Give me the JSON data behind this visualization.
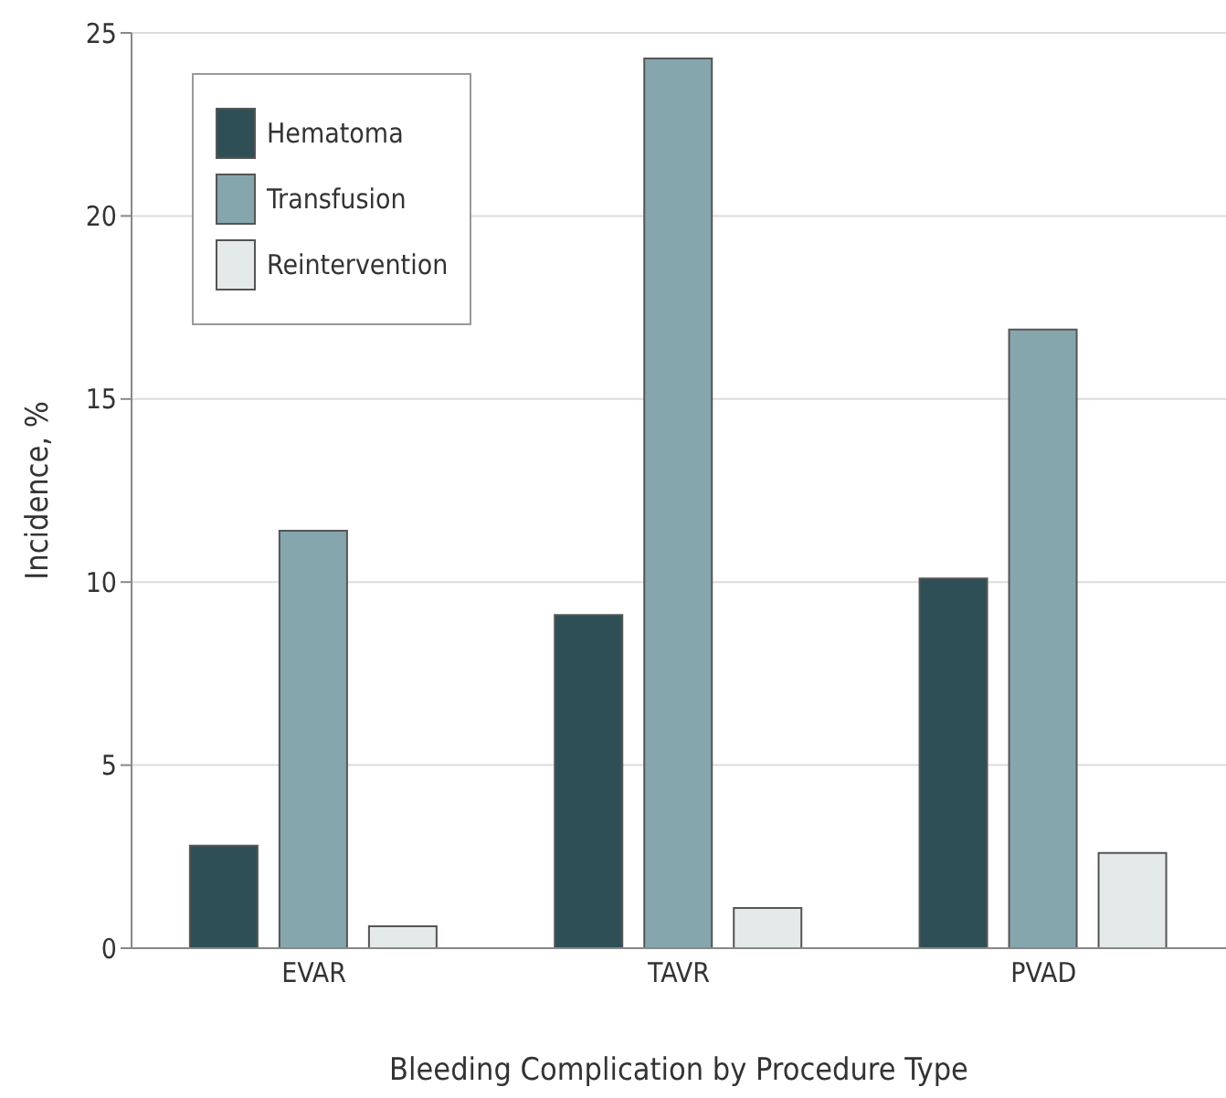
{
  "chart_data": {
    "type": "bar",
    "xlabel": "Bleeding Complication by Procedure Type",
    "ylabel": "Incidence, %",
    "categories": [
      "EVAR",
      "TAVR",
      "PVAD"
    ],
    "series": [
      {
        "name": "Hematoma",
        "color": "#2d4f55",
        "values": [
          2.8,
          9.1,
          10.1
        ]
      },
      {
        "name": "Transfusion",
        "color": "#86a6ae",
        "values": [
          11.4,
          24.3,
          16.9
        ]
      },
      {
        "name": "Reintervention",
        "color": "#e4e9e9",
        "values": [
          0.6,
          1.1,
          2.6
        ]
      }
    ],
    "ylim": [
      0,
      25
    ],
    "yticks": [
      0,
      5,
      10,
      15,
      20,
      25
    ],
    "grid": "y",
    "legend": "top left"
  }
}
